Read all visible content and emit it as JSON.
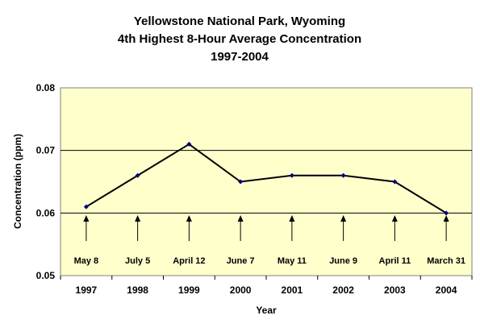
{
  "chart_data": {
    "type": "line",
    "title": [
      "Yellowstone National Park, Wyoming",
      "4th Highest 8-Hour Average Concentration",
      "1997-2004"
    ],
    "xlabel": "Year",
    "ylabel": "Concentration (ppm)",
    "categories": [
      "1997",
      "1998",
      "1999",
      "2000",
      "2001",
      "2002",
      "2003",
      "2004"
    ],
    "values": [
      0.061,
      0.066,
      0.071,
      0.065,
      0.066,
      0.066,
      0.065,
      0.06
    ],
    "annotations": [
      "May 8",
      "July 5",
      "April 12",
      "June 7",
      "May 11",
      "June 9",
      "April 11",
      "March 31"
    ],
    "ylim": [
      0.05,
      0.08
    ],
    "yticks": [
      "0.05",
      "0.06",
      "0.07",
      "0.08"
    ],
    "grid": true,
    "colors": {
      "plot_bg": "#ffffcc",
      "line": "#000000",
      "marker": "#000080"
    }
  }
}
